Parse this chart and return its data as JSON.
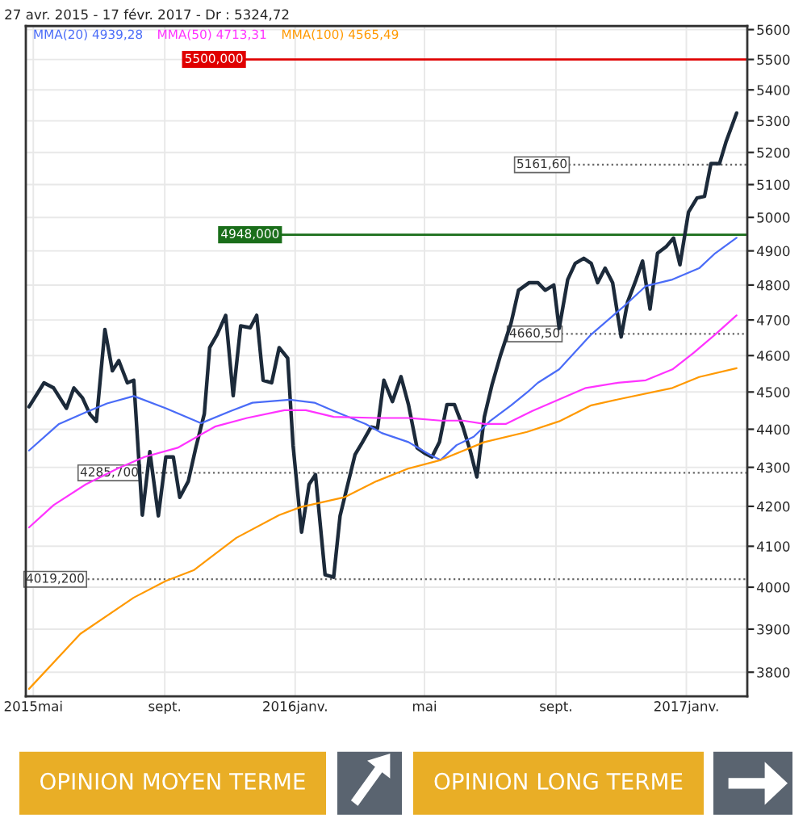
{
  "chart_data": {
    "type": "line",
    "title": "27 avr. 2015 - 17 févr. 2017 - Dr : 5324,72",
    "log": "y",
    "grid": true,
    "legend": "top left",
    "xlim": [
      "2015-04-24",
      "2017-02-27"
    ],
    "xticks": [
      {
        "value": "2015-05-01",
        "label": "2015mai"
      },
      {
        "value": "2015-09-01",
        "label": "sept."
      },
      {
        "value": "2016-01-01",
        "label": "2016janv."
      },
      {
        "value": "2016-05-01",
        "label": "mai"
      },
      {
        "value": "2016-09-01",
        "label": "sept."
      },
      {
        "value": "2017-01-01",
        "label": "2017janv."
      }
    ],
    "ylim": [
      3745,
      5612
    ],
    "yticks": [
      3800,
      3900,
      4000,
      4100,
      4200,
      4300,
      4400,
      4500,
      4600,
      4700,
      4800,
      4900,
      5000,
      5100,
      5200,
      5300,
      5400,
      5500,
      5600
    ],
    "series": [
      {
        "color": "#1c2a3a",
        "x": [
          "2015-04-27",
          "2015-05-11",
          "2015-05-20",
          "2015-06-01",
          "2015-06-08",
          "2015-06-16",
          "2015-06-23",
          "2015-06-29",
          "2015-07-07",
          "2015-07-14",
          "2015-07-20",
          "2015-07-28",
          "2015-08-03",
          "2015-08-11",
          "2015-08-18",
          "2015-08-26",
          "2015-09-02",
          "2015-09-09",
          "2015-09-15",
          "2015-09-23",
          "2015-09-30",
          "2015-10-08",
          "2015-10-13",
          "2015-10-20",
          "2015-10-28",
          "2015-11-04",
          "2015-11-11",
          "2015-11-20",
          "2015-11-26",
          "2015-12-02",
          "2015-12-10",
          "2015-12-17",
          "2015-12-25",
          "2015-12-30",
          "2016-01-07",
          "2016-01-14",
          "2016-01-20",
          "2016-01-29",
          "2016-02-06",
          "2016-02-12",
          "2016-02-26",
          "2016-03-04",
          "2016-03-12",
          "2016-03-18",
          "2016-03-24",
          "2016-04-01",
          "2016-04-09",
          "2016-04-16",
          "2016-04-24",
          "2016-05-01",
          "2016-05-08",
          "2016-05-15",
          "2016-05-22",
          "2016-05-29",
          "2016-06-06",
          "2016-06-13",
          "2016-06-19",
          "2016-06-26",
          "2016-07-03",
          "2016-07-11",
          "2016-07-21",
          "2016-07-28",
          "2016-08-07",
          "2016-08-15",
          "2016-08-22",
          "2016-08-30",
          "2016-09-04",
          "2016-09-12",
          "2016-09-19",
          "2016-09-27",
          "2016-10-04",
          "2016-10-10",
          "2016-10-17",
          "2016-10-24",
          "2016-11-01",
          "2016-11-07",
          "2016-11-15",
          "2016-11-21",
          "2016-11-28",
          "2016-12-05",
          "2016-12-13",
          "2016-12-20",
          "2016-12-26",
          "2017-01-03",
          "2017-01-11",
          "2017-01-18",
          "2017-01-24",
          "2017-02-01",
          "2017-02-07",
          "2017-02-17"
        ],
        "values": [
          4460,
          4525,
          4511,
          4456,
          4511,
          4484,
          4440,
          4421,
          4673,
          4558,
          4586,
          4525,
          4532,
          4178,
          4341,
          4176,
          4327,
          4327,
          4223,
          4264,
          4351,
          4441,
          4622,
          4659,
          4713,
          4490,
          4683,
          4678,
          4713,
          4532,
          4525,
          4622,
          4593,
          4358,
          4135,
          4256,
          4281,
          4030,
          4024,
          4176,
          4333,
          4366,
          4406,
          4402,
          4532,
          4474,
          4542,
          4466,
          4351,
          4337,
          4327,
          4366,
          4466,
          4466,
          4406,
          4341,
          4275,
          4433,
          4518,
          4600,
          4691,
          4785,
          4807,
          4807,
          4785,
          4800,
          4676,
          4816,
          4863,
          4878,
          4863,
          4807,
          4849,
          4807,
          4652,
          4751,
          4816,
          4870,
          4731,
          4893,
          4912,
          4938,
          4859,
          5016,
          5059,
          5064,
          5165,
          5165,
          5232,
          5325
        ]
      },
      {
        "name": "MMA(20) 4939,28",
        "color": "#4a6cf7",
        "x": [
          "2015-04-27",
          "2015-05-25",
          "2015-06-19",
          "2015-07-09",
          "2015-08-03",
          "2015-09-02",
          "2015-10-05",
          "2015-11-02",
          "2015-11-22",
          "2015-12-27",
          "2016-01-19",
          "2016-02-06",
          "2016-03-07",
          "2016-03-22",
          "2016-04-16",
          "2016-05-06",
          "2016-05-16",
          "2016-05-31",
          "2016-06-16",
          "2016-07-01",
          "2016-07-21",
          "2016-08-07",
          "2016-08-15",
          "2016-09-04",
          "2016-10-04",
          "2016-11-04",
          "2016-11-24",
          "2016-12-19",
          "2017-01-13",
          "2017-01-28",
          "2017-02-17"
        ],
        "values": [
          4344,
          4414,
          4445,
          4469,
          4489,
          4456,
          4416,
          4449,
          4471,
          4479,
          4471,
          4449,
          4414,
          4390,
          4366,
          4333,
          4319,
          4358,
          4380,
          4421,
          4464,
          4504,
          4525,
          4562,
          4659,
          4740,
          4797,
          4816,
          4849,
          4893,
          4939
        ]
      },
      {
        "name": "MMA(50) 4713,31",
        "color": "#ff33ff",
        "x": [
          "2015-04-27",
          "2015-05-20",
          "2015-06-19",
          "2015-07-19",
          "2015-08-13",
          "2015-09-13",
          "2015-10-18",
          "2015-11-17",
          "2015-12-22",
          "2016-01-11",
          "2016-02-06",
          "2016-03-17",
          "2016-04-16",
          "2016-05-16",
          "2016-06-06",
          "2016-06-26",
          "2016-07-16",
          "2016-08-10",
          "2016-09-04",
          "2016-09-29",
          "2016-10-29",
          "2016-11-24",
          "2016-12-19",
          "2017-01-08",
          "2017-01-28",
          "2017-02-17"
        ],
        "values": [
          4147,
          4203,
          4256,
          4297,
          4327,
          4351,
          4407,
          4430,
          4451,
          4451,
          4433,
          4430,
          4430,
          4423,
          4423,
          4414,
          4414,
          4449,
          4480,
          4511,
          4525,
          4532,
          4562,
          4608,
          4659,
          4713
        ]
      },
      {
        "name": "MMA(100) 4565,49",
        "color": "#ff9900",
        "x": [
          "2015-04-27",
          "2015-06-14",
          "2015-08-03",
          "2015-09-02",
          "2015-09-28",
          "2015-11-07",
          "2015-12-17",
          "2016-01-06",
          "2016-02-16",
          "2016-03-17",
          "2016-04-16",
          "2016-05-16",
          "2016-06-26",
          "2016-08-05",
          "2016-09-04",
          "2016-10-04",
          "2016-10-29",
          "2016-12-19",
          "2017-01-13",
          "2017-02-17"
        ],
        "values": [
          3762,
          3889,
          3975,
          4015,
          4041,
          4121,
          4178,
          4198,
          4223,
          4264,
          4297,
          4319,
          4366,
          4393,
          4421,
          4464,
          4480,
          4511,
          4541,
          4565
        ]
      }
    ],
    "ref_lines": [
      {
        "axis": "y",
        "value": 5500,
        "label": "5500,000",
        "color": "#e00000",
        "line_style": "solid"
      },
      {
        "axis": "y",
        "value": 4948,
        "label": "4948,000",
        "color": "#1a6e1a",
        "line_style": "solid"
      },
      {
        "axis": "y",
        "value": 5161.6,
        "label": "5161,60",
        "color": "#666666",
        "line_style": "dotted"
      },
      {
        "axis": "y",
        "value": 4660.5,
        "label": "4660,50",
        "color": "#666666",
        "line_style": "dotted"
      },
      {
        "axis": "y",
        "value": 4285.7,
        "label": "4285,700",
        "color": "#666666",
        "line_style": "dotted"
      },
      {
        "axis": "y",
        "value": 4019.2,
        "label": "4019,200",
        "color": "#666666",
        "line_style": "dotted"
      }
    ],
    "annotations": [
      "OPINION MOYEN TERME",
      "OPINION LONG TERME"
    ]
  }
}
